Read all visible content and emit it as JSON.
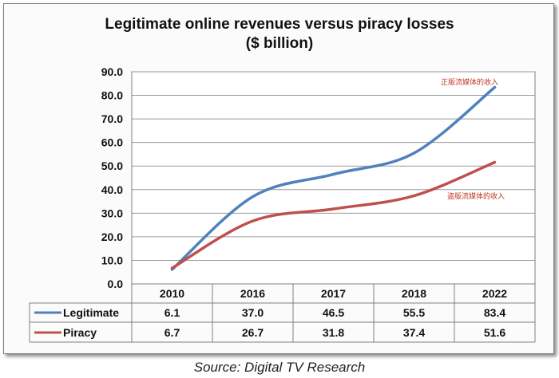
{
  "title_line1": "Legitimate online revenues versus piracy losses",
  "title_line2": "($ billion)",
  "source": "Source: Digital TV Research",
  "chart_data": {
    "type": "line",
    "categories": [
      "2010",
      "2016",
      "2017",
      "2018",
      "2022"
    ],
    "series": [
      {
        "name": "Legitimate",
        "values": [
          6.1,
          37.0,
          46.5,
          55.5,
          83.4
        ],
        "color": "#4f81bd"
      },
      {
        "name": "Piracy",
        "values": [
          6.7,
          26.7,
          31.8,
          37.4,
          51.6
        ],
        "color": "#c0504d"
      }
    ],
    "table_values": {
      "Legitimate": [
        "6.1",
        "37.0",
        "46.5",
        "55.5",
        "83.4"
      ],
      "Piracy": [
        "6.7",
        "26.7",
        "31.8",
        "37.4",
        "51.6"
      ]
    },
    "yticks": [
      "0.0",
      "10.0",
      "20.0",
      "30.0",
      "40.0",
      "50.0",
      "60.0",
      "70.0",
      "80.0",
      "90.0"
    ],
    "ylim": [
      0,
      90
    ],
    "grid": true,
    "legend": "data-table",
    "annotations": [
      "正版流媒体的收入",
      "盗版流媒体的收入"
    ]
  }
}
